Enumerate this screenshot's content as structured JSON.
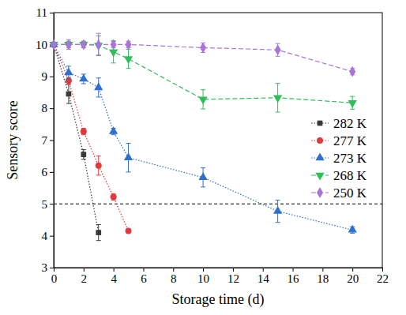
{
  "chart_data": {
    "type": "line",
    "x_label": "Storage time (d)",
    "y_label": "Sensory score",
    "xlim": [
      0,
      22
    ],
    "xticks": [
      0,
      2,
      4,
      6,
      8,
      10,
      12,
      14,
      16,
      18,
      20,
      22
    ],
    "ylim": [
      3,
      11
    ],
    "yticks": [
      3,
      4,
      5,
      6,
      7,
      8,
      9,
      10,
      11
    ],
    "threshold": 5,
    "legend": "right",
    "series": [
      {
        "name": "282 K",
        "color": "#3a3a3a",
        "marker": "square",
        "line_style": "dotted",
        "x": [
          0,
          1,
          2,
          3
        ],
        "values": [
          10,
          8.45,
          6.55,
          4.1
        ],
        "errors": [
          0,
          0.3,
          0.15,
          0.25
        ]
      },
      {
        "name": "277 K",
        "color": "#e03a3e",
        "marker": "circle",
        "line_style": "dotted",
        "x": [
          0,
          1,
          2,
          3,
          4,
          5
        ],
        "values": [
          10,
          8.87,
          7.27,
          6.2,
          5.22,
          4.15
        ],
        "errors": [
          0,
          0.1,
          0.1,
          0.3,
          0.1,
          0.05
        ]
      },
      {
        "name": "273 K",
        "color": "#2f6fd0",
        "marker": "triangle",
        "line_style": "dotted",
        "x": [
          0,
          1,
          2,
          3,
          4,
          5,
          10,
          15,
          20
        ],
        "values": [
          10,
          9.12,
          8.92,
          8.65,
          7.27,
          6.45,
          5.83,
          4.77,
          4.18
        ],
        "errors": [
          0,
          0.2,
          0.15,
          0.3,
          0.1,
          0.45,
          0.3,
          0.35,
          0.1
        ]
      },
      {
        "name": "268 K",
        "color": "#2fbf5a",
        "marker": "triangle-down",
        "line_style": "dashed",
        "x": [
          0,
          1,
          2,
          3,
          4,
          5,
          10,
          15,
          20
        ],
        "values": [
          10,
          10,
          10,
          9.97,
          9.77,
          9.55,
          8.28,
          8.33,
          8.17
        ],
        "errors": [
          0,
          0.1,
          0.1,
          0.3,
          0.35,
          0.3,
          0.3,
          0.45,
          0.2
        ]
      },
      {
        "name": "250 K",
        "color": "#a875d6",
        "marker": "diamond",
        "line_style": "dashed",
        "x": [
          0,
          1,
          2,
          3,
          4,
          5,
          10,
          15,
          20
        ],
        "values": [
          10,
          10,
          10,
          10,
          10,
          10,
          9.9,
          9.83,
          9.15
        ],
        "errors": [
          0,
          0.15,
          0.1,
          0.35,
          0.1,
          0.1,
          0.15,
          0.2,
          0.1
        ]
      }
    ]
  }
}
